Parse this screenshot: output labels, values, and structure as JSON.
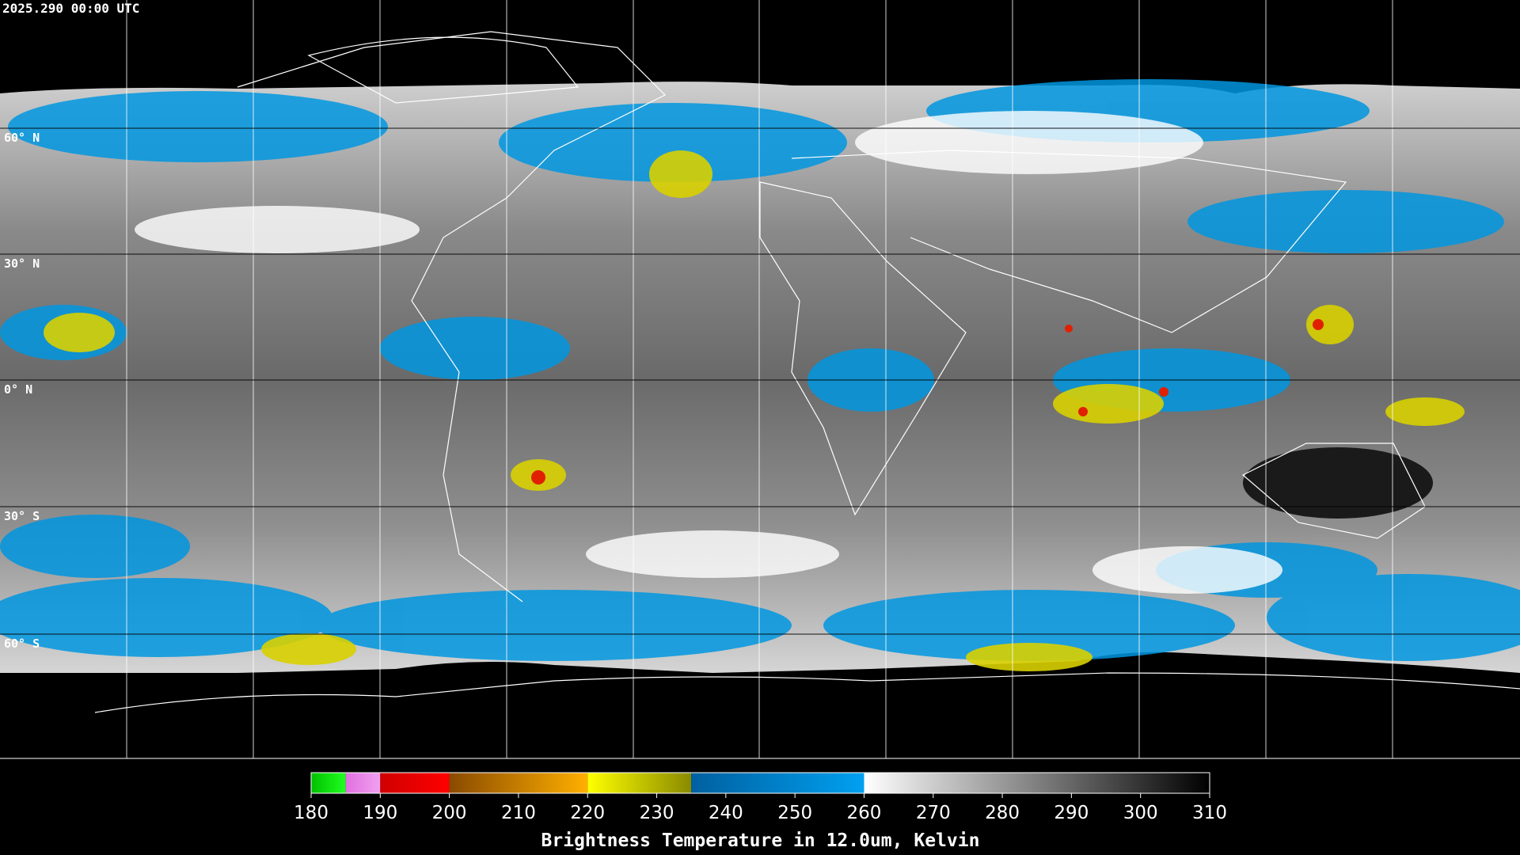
{
  "header": {
    "timestamp": "2025.290 00:00 UTC"
  },
  "map": {
    "latitude_labels": [
      "60° N",
      "30° N",
      "0° N",
      "30° S",
      "60° S"
    ]
  },
  "colorbar": {
    "label": "Brightness Temperature in 12.0um, Kelvin",
    "lim": [
      180,
      310
    ],
    "ticks": [
      180,
      190,
      200,
      210,
      220,
      230,
      240,
      250,
      260,
      270,
      280,
      290,
      300,
      310
    ],
    "segments": [
      {
        "from": 180,
        "to": 185,
        "colors": [
          "#00c000",
          "#20ff20"
        ]
      },
      {
        "from": 185,
        "to": 190,
        "colors": [
          "#e070e0",
          "#f0a0f0"
        ]
      },
      {
        "from": 190,
        "to": 200,
        "colors": [
          "#d00000",
          "#ff0000"
        ]
      },
      {
        "from": 200,
        "to": 220,
        "colors": [
          "#8a4a00",
          "#ffb000"
        ]
      },
      {
        "from": 220,
        "to": 235,
        "colors": [
          "#ffff00",
          "#8a8a00"
        ]
      },
      {
        "from": 235,
        "to": 260,
        "colors": [
          "#0060a0",
          "#00a0f0"
        ]
      },
      {
        "from": 260,
        "to": 310,
        "colors": [
          "#ffffff",
          "#000000"
        ]
      }
    ]
  }
}
